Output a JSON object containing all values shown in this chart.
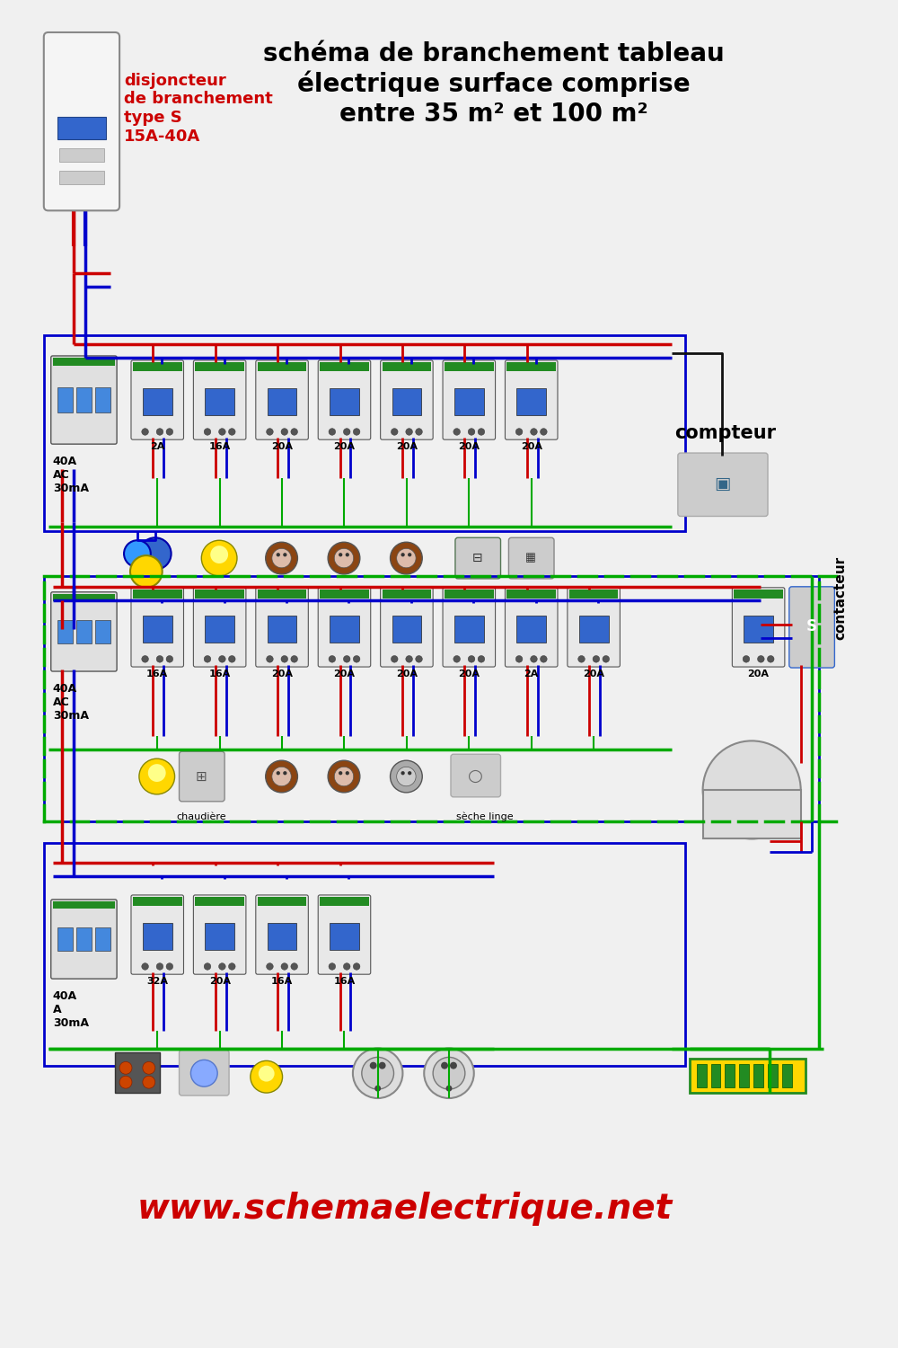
{
  "title_main": "schéma de branchement tableau\nélectrique surface comprise\nentre 35 m² et 100 m²",
  "title_main_color": "#000000",
  "title_main_fontsize": 20,
  "label_disj": "disjoncteur\nde branchement\ntype S\n15A-40A",
  "label_disj_color": "#cc0000",
  "label_disj_fontsize": 13,
  "label_compteur": "compteur",
  "label_contacteur": "contacteur",
  "label_40A_AC": "40A\nAC\n30mA",
  "label_40A_AC2": "40A\nAC\n30mA",
  "label_40A_A": "40A\nA\n30mA",
  "website": "www.schemaelectrique.net",
  "website_color": "#cc0000",
  "website_fontsize": 28,
  "bg_color": "#f0f0f0",
  "wire_red": "#cc0000",
  "wire_blue": "#0000cc",
  "wire_green_yellow": "#00aa00",
  "wire_black": "#111111",
  "row1_breakers": [
    "2A",
    "16A",
    "20A",
    "20A",
    "20A",
    "20A",
    "20A"
  ],
  "row2_breakers": [
    "16A",
    "16A",
    "20A",
    "20A",
    "20A",
    "20A",
    "2A",
    "20A"
  ],
  "row3_breakers": [
    "32A",
    "20A",
    "16A",
    "16A"
  ],
  "row2_contacteur": "20A",
  "frame1_color": "#0000cc",
  "frame2_color": "#0000cc",
  "frame3_color": "#0000cc",
  "frame_green": "#00aa00",
  "label_chaudiere": "chaudière",
  "label_seche_linge": "sèche linge"
}
